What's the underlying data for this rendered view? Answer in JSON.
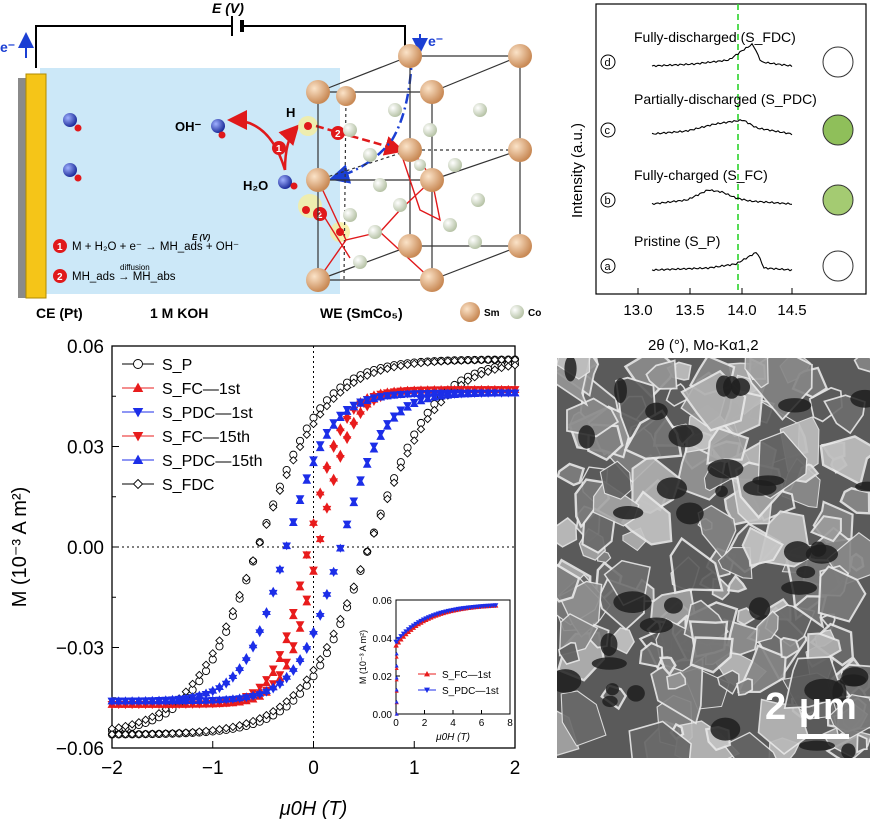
{
  "schematic": {
    "voltage_label": "E (V)",
    "electron_left": "e⁻",
    "electron_right": "e⁻",
    "ce_label": "CE (Pt)",
    "electrolyte_label": "1 M KOH",
    "we_label": "WE (SmCo₅)",
    "legend_sm": "Sm",
    "legend_co": "Co",
    "oh_label": "OH⁻",
    "h_label": "H",
    "h2o_label": "H₂O",
    "step1_badge": "1",
    "step2_badge": "2",
    "reaction1": "M + H₂O + e⁻ → MH_ads + OH⁻",
    "reaction1_arrow_label": "E (V)",
    "reaction2": "MH_ads → MH_abs",
    "reaction2_arrow_label": "diffusion",
    "colors": {
      "electrolyte": "#cce8f8",
      "electrode": "#f5c518",
      "sm_atom": "#e4b48a",
      "co_atom": "#dfe6d4",
      "oxygen": "#e0191b",
      "hydrogen_blue": "#3245c8",
      "badge_red": "#e0191b",
      "arrow_blue": "#1b3fd3"
    }
  },
  "xrd": {
    "ylabel": "Intensity (a.u.)",
    "xlabel": "2θ (°), Mo-Kα1,2",
    "xticks": [
      "13.0",
      "13.5",
      "14.0",
      "14.5"
    ],
    "dashed_line_color": "#2bd42b",
    "traces": [
      {
        "marker": "d",
        "label": "Fully-discharged (S_FDC)",
        "circle_fill": "#ffffff"
      },
      {
        "marker": "c",
        "label": "Partially-discharged (S_PDC)",
        "circle_fill": "#8fbf5a"
      },
      {
        "marker": "b",
        "label": "Fully-charged (S_FC)",
        "circle_fill": "#a4cb72"
      },
      {
        "marker": "a",
        "label": "Pristine (S_P)",
        "circle_fill": "#ffffff"
      }
    ]
  },
  "chart_data": [
    {
      "type": "scatter",
      "xlabel": "μ0H (T)",
      "ylabel": "M (10⁻³ A m²)",
      "xlim": [
        -2,
        2
      ],
      "ylim": [
        -0.06,
        0.06
      ],
      "xticks": [
        "−2",
        "−1",
        "0",
        "1",
        "2"
      ],
      "yticks": [
        "0.06",
        "0.03",
        "0.00",
        "−0.03",
        "−0.06"
      ],
      "legend_position": "top-left",
      "series": [
        {
          "name": "S_P",
          "marker": "circle-open",
          "color": "#000000",
          "Ms": 0.056,
          "Hc": 0.55,
          "width": 0.65
        },
        {
          "name": "S_FC—1st",
          "marker": "triangle-up-filled",
          "color": "#e81c1c",
          "Ms": 0.047,
          "Hc": 0.05,
          "width": 0.32
        },
        {
          "name": "S_PDC—1st",
          "marker": "triangle-down-filled",
          "color": "#1c2ee8",
          "Ms": 0.046,
          "Hc": 0.27,
          "width": 0.42
        },
        {
          "name": "S_FC—15th",
          "marker": "triangle-down-filled",
          "color": "#e81c1c",
          "Ms": 0.047,
          "Hc": 0.05,
          "width": 0.34
        },
        {
          "name": "S_PDC—15th",
          "marker": "triangle-up-filled",
          "color": "#1c2ee8",
          "Ms": 0.046,
          "Hc": 0.27,
          "width": 0.44
        },
        {
          "name": "S_FDC",
          "marker": "diamond-open",
          "color": "#000000",
          "Ms": 0.056,
          "Hc": 0.55,
          "width": 0.7
        }
      ]
    },
    {
      "type": "scatter",
      "inset": true,
      "xlabel": "μ0H (T)",
      "ylabel": "M (10⁻³ A m²)",
      "xlim": [
        0,
        8
      ],
      "ylim": [
        0,
        0.06
      ],
      "xticks": [
        "0",
        "2",
        "4",
        "6",
        "8"
      ],
      "yticks": [
        "0.06",
        "0.04",
        "0.02",
        "0.00"
      ],
      "series": [
        {
          "name": "S_FC—1st",
          "color": "#e81c1c",
          "Ms": 0.058,
          "M0": 0.036
        },
        {
          "name": "S_PDC—1st",
          "color": "#1c2ee8",
          "Ms": 0.058,
          "M0": 0.038
        }
      ]
    }
  ],
  "sem": {
    "scale_label": "2 μm"
  }
}
